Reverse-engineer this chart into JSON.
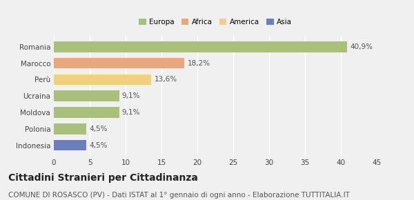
{
  "categories": [
    "Romania",
    "Marocco",
    "Perù",
    "Ucraina",
    "Moldova",
    "Polonia",
    "Indonesia"
  ],
  "values": [
    40.9,
    18.2,
    13.6,
    9.1,
    9.1,
    4.5,
    4.5
  ],
  "labels": [
    "40,9%",
    "18,2%",
    "13,6%",
    "9,1%",
    "9,1%",
    "4,5%",
    "4,5%"
  ],
  "bar_colors": [
    "#a8c07a",
    "#e8a87c",
    "#f0d080",
    "#a8c07a",
    "#a8c07a",
    "#a8c07a",
    "#6b7fc0"
  ],
  "legend_labels": [
    "Europa",
    "Africa",
    "America",
    "Asia"
  ],
  "legend_colors": [
    "#a8c07a",
    "#e8a87c",
    "#f0d080",
    "#6b7fc0"
  ],
  "xlim": [
    0,
    45
  ],
  "xticks": [
    0,
    5,
    10,
    15,
    20,
    25,
    30,
    35,
    40,
    45
  ],
  "title": "Cittadini Stranieri per Cittadinanza",
  "subtitle": "COMUNE DI ROSASCO (PV) - Dati ISTAT al 1° gennaio di ogni anno - Elaborazione TUTTITALIA.IT",
  "bg_color": "#f0f0f0",
  "grid_color": "#ffffff",
  "title_fontsize": 10,
  "subtitle_fontsize": 7.5,
  "label_fontsize": 7.5,
  "tick_fontsize": 7.5
}
